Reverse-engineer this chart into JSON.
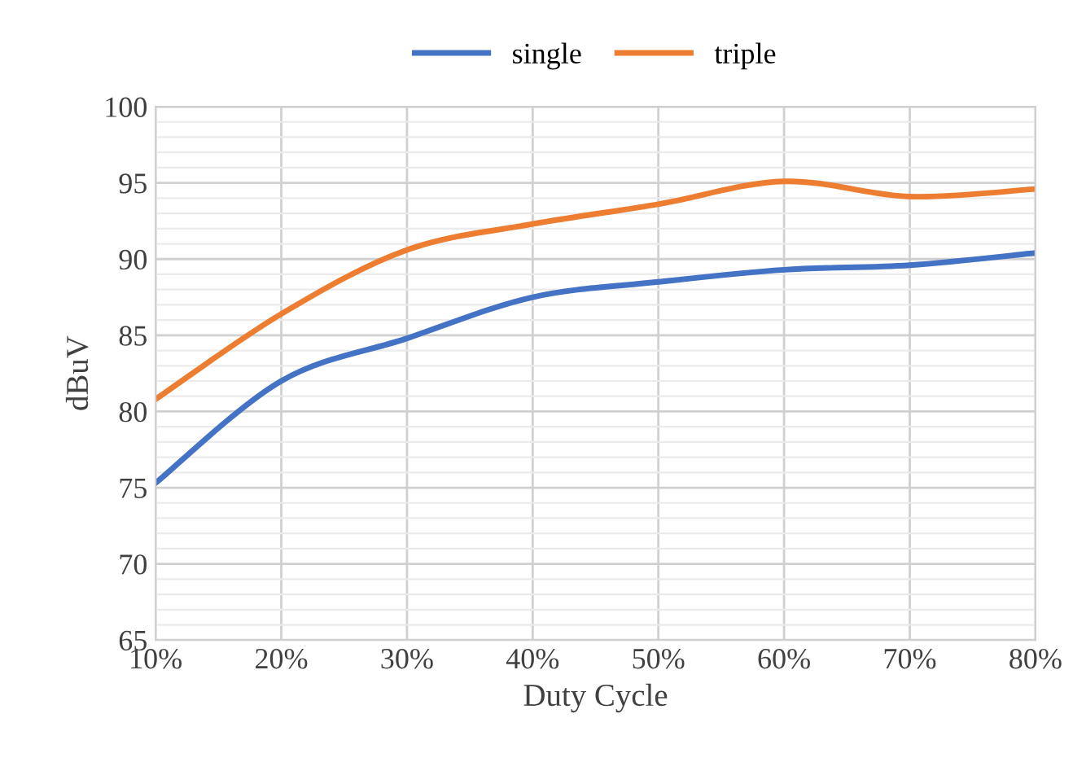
{
  "chart_data": {
    "type": "line",
    "xlabel": "Duty Cycle",
    "ylabel": "dBuV",
    "categories": [
      "10%",
      "20%",
      "30%",
      "40%",
      "50%",
      "60%",
      "70%",
      "80%"
    ],
    "series": [
      {
        "name": "single",
        "color": "#4472c4",
        "values": [
          75.3,
          82,
          84.8,
          87.5,
          88.5,
          89.3,
          89.6,
          90.4
        ]
      },
      {
        "name": "triple",
        "color": "#ed7d31",
        "values": [
          80.8,
          86.4,
          90.6,
          92.3,
          93.6,
          95.1,
          94.1,
          94.6
        ]
      }
    ],
    "ylim": [
      65,
      100
    ],
    "yticks": [
      65,
      70,
      75,
      80,
      85,
      90,
      95,
      100
    ],
    "grid": true,
    "legend": "top",
    "marker": "none",
    "line_style": "solid"
  }
}
